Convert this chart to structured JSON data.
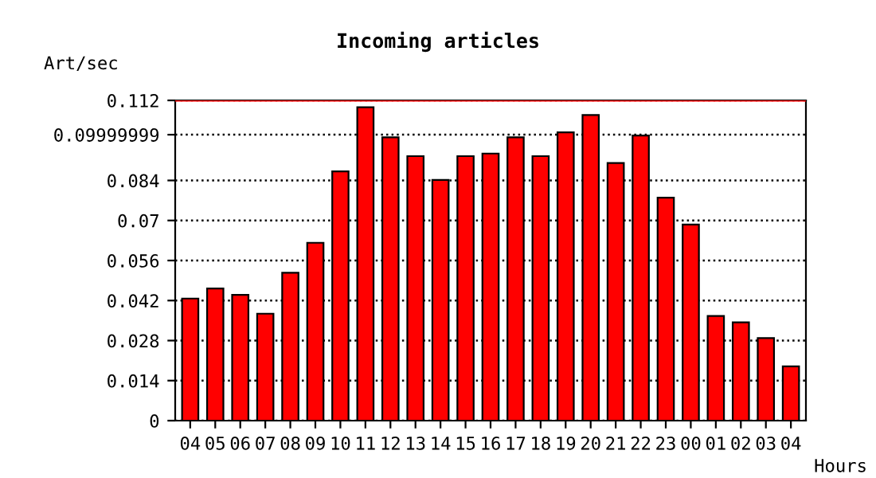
{
  "chart_data": {
    "type": "bar",
    "title": "Incoming articles",
    "ylabel": "Art/sec",
    "xlabel": "Hours",
    "categories": [
      "04",
      "05",
      "06",
      "07",
      "08",
      "09",
      "10",
      "11",
      "12",
      "13",
      "14",
      "15",
      "16",
      "17",
      "18",
      "19",
      "20",
      "21",
      "22",
      "23",
      "00",
      "01",
      "02",
      "03",
      "04"
    ],
    "values": [
      0.0427,
      0.0462,
      0.044,
      0.0374,
      0.0517,
      0.0622,
      0.0872,
      0.1096,
      0.0991,
      0.0925,
      0.0842,
      0.0925,
      0.0934,
      0.0991,
      0.0925,
      0.1008,
      0.1069,
      0.0901,
      0.0997,
      0.078,
      0.0686,
      0.0366,
      0.0344,
      0.0289,
      0.019
    ],
    "color": "#ff0000",
    "ylim": [
      0,
      0.112
    ],
    "yticks": [
      0,
      0.014,
      0.028,
      0.042,
      0.056,
      0.07,
      0.084,
      0.09999999,
      0.112
    ],
    "grid": "y",
    "line_style": "dotted",
    "ref_lines": [
      {
        "axis": "y",
        "value": 0.112,
        "color": "#ff0000",
        "line_style": "solid"
      }
    ]
  }
}
